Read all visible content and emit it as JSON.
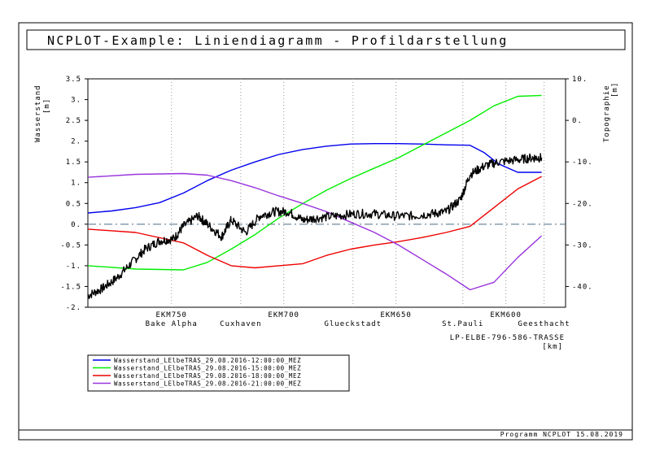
{
  "title": "NCPLOT-Example: Liniendiagramm - Profildarstellung",
  "footer": "Programm NCPLOT 15.08.2019",
  "left_axis": {
    "label": "Wasserstand",
    "unit": "[m]",
    "ylim": [
      -2,
      3.5
    ],
    "ticks": [
      "-2.",
      "-1.5",
      "-1.",
      "-0.5",
      "0.",
      "0.5",
      "1.",
      "1.5",
      "2.",
      "2.5",
      "3.",
      "3.5"
    ]
  },
  "right_axis": {
    "label": "Topographie",
    "unit": "[m]",
    "ylim": [
      -45,
      10
    ],
    "ticks": [
      "-40.",
      "-30.",
      "-20.",
      "-10.",
      "0.",
      "10."
    ]
  },
  "x_axis": {
    "label": "LP-ELBE-796-586-TRASSE",
    "unit": "[km]",
    "xlim": [
      0,
      1
    ],
    "km_marks": [
      {
        "label": "EKM750",
        "x": 0.175
      },
      {
        "label": "EKM700",
        "x": 0.41
      },
      {
        "label": "EKM650",
        "x": 0.645
      },
      {
        "label": "EKM600",
        "x": 0.875
      }
    ],
    "places": [
      {
        "label": "Bake Alpha",
        "x": 0.175
      },
      {
        "label": "Cuxhaven",
        "x": 0.32
      },
      {
        "label": "Glueckstadt",
        "x": 0.555
      },
      {
        "label": "St.Pauli",
        "x": 0.785
      },
      {
        "label": "Geesthacht",
        "x": 0.955
      }
    ]
  },
  "colors": {
    "frame": "#000000",
    "zero_line": "#4a6b84",
    "grid": "#999999"
  },
  "chart_data": {
    "type": "line",
    "title": "NCPLOT-Example: Liniendiagramm - Profildarstellung",
    "series": [
      {
        "name": "Wasserstand_LElbeTRAS_29.08.2016-12:00:00_MEZ",
        "color": "#0000ee",
        "axis": "left",
        "x": [
          0,
          0.05,
          0.1,
          0.15,
          0.2,
          0.25,
          0.3,
          0.35,
          0.4,
          0.45,
          0.5,
          0.55,
          0.6,
          0.65,
          0.7,
          0.75,
          0.8,
          0.83,
          0.86,
          0.9,
          0.95
        ],
        "y": [
          0.27,
          0.32,
          0.4,
          0.52,
          0.75,
          1.05,
          1.3,
          1.5,
          1.68,
          1.8,
          1.88,
          1.93,
          1.94,
          1.94,
          1.93,
          1.91,
          1.9,
          1.72,
          1.45,
          1.25,
          1.25
        ]
      },
      {
        "name": "Wasserstand_LElbeTRAS_29.08.2016-15:00:00_MEZ",
        "color": "#00ee00",
        "axis": "left",
        "x": [
          0,
          0.1,
          0.2,
          0.25,
          0.3,
          0.35,
          0.4,
          0.45,
          0.5,
          0.55,
          0.6,
          0.65,
          0.7,
          0.75,
          0.8,
          0.85,
          0.9,
          0.95
        ],
        "y": [
          -1.0,
          -1.08,
          -1.1,
          -0.92,
          -0.6,
          -0.25,
          0.15,
          0.5,
          0.82,
          1.1,
          1.35,
          1.6,
          1.9,
          2.2,
          2.5,
          2.85,
          3.08,
          3.1
        ]
      },
      {
        "name": "Wasserstand_LElbeTRAS_29.08.2016-18:00:00_MEZ",
        "color": "#ee0000",
        "axis": "left",
        "x": [
          0,
          0.1,
          0.2,
          0.25,
          0.3,
          0.35,
          0.4,
          0.45,
          0.5,
          0.55,
          0.6,
          0.65,
          0.7,
          0.75,
          0.8,
          0.85,
          0.9,
          0.95
        ],
        "y": [
          -0.12,
          -0.2,
          -0.45,
          -0.75,
          -1.0,
          -1.05,
          -1.0,
          -0.95,
          -0.75,
          -0.6,
          -0.5,
          -0.42,
          -0.32,
          -0.2,
          -0.05,
          0.4,
          0.85,
          1.15
        ]
      },
      {
        "name": "Wasserstand_LElbeTRAS_29.08.2016-21:00:00_MEZ",
        "color": "#9933dd",
        "axis": "left",
        "x": [
          0,
          0.1,
          0.2,
          0.25,
          0.3,
          0.35,
          0.4,
          0.45,
          0.5,
          0.55,
          0.6,
          0.65,
          0.7,
          0.75,
          0.8,
          0.85,
          0.9,
          0.95
        ],
        "y": [
          1.13,
          1.2,
          1.22,
          1.18,
          1.05,
          0.88,
          0.68,
          0.5,
          0.3,
          0.05,
          -0.2,
          -0.5,
          -0.85,
          -1.2,
          -1.58,
          -1.4,
          -0.8,
          -0.28
        ]
      },
      {
        "name": "Topographie",
        "color": "#000000",
        "axis": "left",
        "noisy": true,
        "x": [
          0,
          0.03,
          0.06,
          0.09,
          0.12,
          0.15,
          0.18,
          0.2,
          0.23,
          0.25,
          0.28,
          0.3,
          0.33,
          0.36,
          0.39,
          0.42,
          0.45,
          0.48,
          0.52,
          0.56,
          0.6,
          0.64,
          0.68,
          0.72,
          0.75,
          0.78,
          0.8,
          0.83,
          0.86,
          0.9,
          0.93,
          0.95
        ],
        "y": [
          -1.72,
          -1.55,
          -1.3,
          -0.95,
          -0.6,
          -0.4,
          -0.35,
          -0.05,
          0.2,
          0.0,
          -0.3,
          0.1,
          -0.2,
          0.2,
          0.3,
          0.3,
          0.1,
          0.15,
          0.2,
          0.25,
          0.25,
          0.2,
          0.2,
          0.25,
          0.3,
          0.6,
          1.2,
          1.4,
          1.5,
          1.55,
          1.6,
          1.6
        ]
      }
    ]
  }
}
